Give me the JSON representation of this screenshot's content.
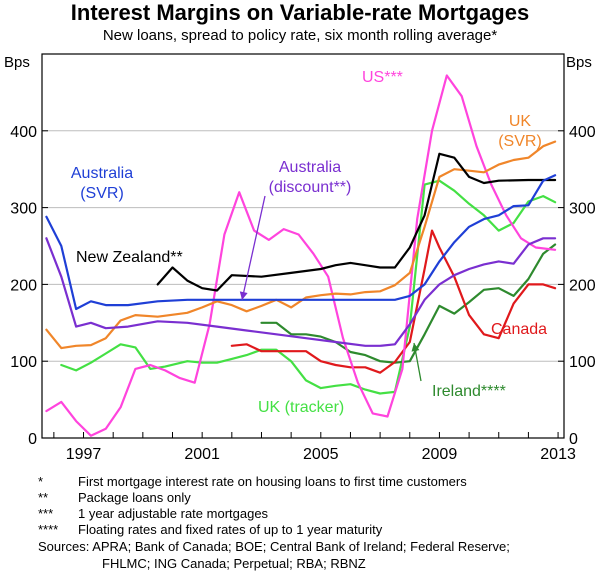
{
  "title": "Interest Margins on Variable-rate Mortgages",
  "subtitle": "New loans, spread to policy rate, six month rolling average*",
  "notes": [
    {
      "mark": "*",
      "text": "First mortgage interest rate on housing loans to first time customers"
    },
    {
      "mark": "**",
      "text": "Package loans only"
    },
    {
      "mark": "***",
      "text": "1 year adjustable rate mortgages"
    },
    {
      "mark": "****",
      "text": "Floating rates and fixed rates of up to 1 year maturity"
    }
  ],
  "sources": {
    "line1": "Sources: APRA; Bank of Canada; BOE; Central Bank of Ireland; Federal Reserve;",
    "line2": "FHLMC; ING Canada; Perpetual; RBA; RBNZ"
  },
  "colors": {
    "australia_svr": "#1f3fd6",
    "australia_discount": "#7a2fd0",
    "new_zealand": "#000000",
    "us": "#ff44dd",
    "uk_svr": "#f0862a",
    "canada": "#e0191c",
    "uk_tracker": "#44e044",
    "ireland": "#2e8a2e"
  },
  "chart_data": {
    "type": "line",
    "ylabel_left": "Bps",
    "ylabel_right": "Bps",
    "ylim": [
      0,
      500
    ],
    "xlim": [
      1995.6,
      2013.2
    ],
    "yticks": [
      0,
      100,
      200,
      300,
      400
    ],
    "xticks": [
      1997,
      2001,
      2005,
      2009,
      2013
    ],
    "series": [
      {
        "name": "Australia (SVR)",
        "label_lines": [
          "Australia",
          "(SVR)"
        ],
        "color_key": "australia_svr",
        "x": [
          1995.75,
          1996.25,
          1996.75,
          1997.25,
          1997.75,
          1998.5,
          1999.5,
          2000.5,
          2001.0,
          2007.0,
          2007.5,
          2008.0,
          2008.5,
          2009.0,
          2009.5,
          2010.0,
          2010.5,
          2011.0,
          2011.5,
          2012.0,
          2012.5,
          2012.9
        ],
        "y": [
          288,
          250,
          168,
          178,
          173,
          173,
          178,
          180,
          180,
          180,
          180,
          185,
          200,
          230,
          255,
          275,
          285,
          290,
          302,
          303,
          335,
          342
        ]
      },
      {
        "name": "Australia (discount**)",
        "label_lines": [
          "Australia",
          "(discount**)"
        ],
        "color_key": "australia_discount",
        "x": [
          1995.75,
          1996.25,
          1996.75,
          1997.25,
          1997.75,
          1998.5,
          1999.5,
          2000.5,
          2001.5,
          2002.5,
          2003.5,
          2004.5,
          2005.5,
          2006.5,
          2007.0,
          2007.5,
          2008.0,
          2008.5,
          2009.0,
          2009.5,
          2010.0,
          2010.5,
          2011.0,
          2011.5,
          2012.0,
          2012.5,
          2012.9
        ],
        "y": [
          260,
          210,
          145,
          150,
          143,
          145,
          152,
          150,
          145,
          140,
          135,
          130,
          125,
          120,
          120,
          122,
          148,
          180,
          200,
          212,
          220,
          226,
          230,
          227,
          252,
          260,
          260
        ]
      },
      {
        "name": "New Zealand**",
        "label_lines": [
          "New Zealand**"
        ],
        "color_key": "new_zealand",
        "x": [
          1999.5,
          2000.0,
          2000.5,
          2001.0,
          2001.5,
          2002.0,
          2003.0,
          2004.0,
          2005.0,
          2005.5,
          2006.0,
          2006.5,
          2007.0,
          2007.5,
          2008.0,
          2008.5,
          2009.0,
          2009.5,
          2010.0,
          2010.5,
          2011.0,
          2012.0,
          2012.9
        ],
        "y": [
          200,
          222,
          205,
          195,
          192,
          212,
          210,
          215,
          220,
          225,
          228,
          225,
          222,
          222,
          248,
          290,
          370,
          365,
          340,
          332,
          335,
          336,
          336
        ]
      },
      {
        "name": "US***",
        "label_lines": [
          "US***"
        ],
        "color_key": "us",
        "x": [
          1995.75,
          1996.25,
          1996.75,
          1997.25,
          1997.75,
          1998.25,
          1998.75,
          1999.25,
          1999.75,
          2000.25,
          2000.75,
          2001.25,
          2001.75,
          2002.25,
          2002.75,
          2003.25,
          2003.75,
          2004.25,
          2004.75,
          2005.25,
          2005.75,
          2006.25,
          2006.75,
          2007.25,
          2007.75,
          2008.25,
          2008.75,
          2009.25,
          2009.75,
          2010.25,
          2010.75,
          2011.25,
          2011.75,
          2012.25,
          2012.9
        ],
        "y": [
          35,
          47,
          22,
          3,
          12,
          40,
          90,
          95,
          88,
          78,
          72,
          148,
          265,
          320,
          270,
          258,
          272,
          265,
          240,
          210,
          130,
          72,
          32,
          28,
          90,
          285,
          400,
          472,
          445,
          380,
          330,
          290,
          260,
          248,
          245
        ]
      },
      {
        "name": "UK (SVR)",
        "label_lines": [
          "UK",
          "(SVR)"
        ],
        "color_key": "uk_svr",
        "x": [
          1995.75,
          1996.25,
          1996.75,
          1997.25,
          1997.75,
          1998.25,
          1998.75,
          1999.5,
          2000.5,
          2001.0,
          2001.5,
          2002.0,
          2002.5,
          2003.0,
          2003.5,
          2004.0,
          2004.5,
          2005.0,
          2005.5,
          2006.0,
          2006.5,
          2007.0,
          2007.5,
          2008.0,
          2008.5,
          2009.0,
          2009.5,
          2010.0,
          2010.5,
          2011.0,
          2011.5,
          2012.0,
          2012.5,
          2012.9
        ],
        "y": [
          141,
          117,
          120,
          121,
          130,
          153,
          160,
          158,
          163,
          170,
          178,
          173,
          165,
          172,
          180,
          170,
          183,
          186,
          188,
          187,
          190,
          191,
          199,
          215,
          275,
          340,
          350,
          348,
          346,
          356,
          362,
          365,
          380,
          386
        ]
      },
      {
        "name": "Canada",
        "label_lines": [
          "Canada"
        ],
        "color_key": "canada",
        "x": [
          2002.0,
          2002.5,
          2003.0,
          2003.5,
          2004.0,
          2004.5,
          2005.0,
          2005.5,
          2006.0,
          2006.5,
          2007.0,
          2007.5,
          2008.0,
          2008.5,
          2008.75,
          2009.0,
          2009.5,
          2010.0,
          2010.5,
          2011.0,
          2011.5,
          2012.0,
          2012.5,
          2012.9
        ],
        "y": [
          120,
          122,
          113,
          113,
          113,
          113,
          100,
          95,
          92,
          92,
          85,
          99,
          125,
          220,
          270,
          248,
          210,
          160,
          135,
          130,
          175,
          200,
          200,
          195
        ]
      },
      {
        "name": "UK (tracker)",
        "label_lines": [
          "UK (tracker)"
        ],
        "color_key": "uk_tracker",
        "x": [
          1996.25,
          1996.75,
          1997.25,
          1997.75,
          1998.25,
          1998.75,
          1999.25,
          1999.75,
          2000.5,
          2001.0,
          2001.5,
          2002.0,
          2002.5,
          2003.0,
          2003.5,
          2004.0,
          2004.5,
          2005.0,
          2005.5,
          2006.0,
          2006.5,
          2007.0,
          2007.5,
          2008.0,
          2008.5,
          2009.0,
          2009.5,
          2010.0,
          2010.5,
          2011.0,
          2011.5,
          2012.0,
          2012.5,
          2012.9
        ],
        "y": [
          95,
          88,
          98,
          110,
          122,
          118,
          90,
          93,
          100,
          98,
          98,
          103,
          108,
          115,
          115,
          100,
          75,
          65,
          68,
          70,
          63,
          58,
          60,
          145,
          330,
          335,
          322,
          305,
          290,
          270,
          280,
          308,
          315,
          307
        ]
      },
      {
        "name": "Ireland****",
        "label_lines": [
          "Ireland****"
        ],
        "color_key": "ireland",
        "x": [
          2003.0,
          2003.5,
          2004.0,
          2004.5,
          2005.0,
          2005.5,
          2006.0,
          2006.5,
          2007.0,
          2007.5,
          2008.0,
          2008.5,
          2009.0,
          2009.5,
          2010.0,
          2010.5,
          2011.0,
          2011.5,
          2012.0,
          2012.5,
          2012.9
        ],
        "y": [
          150,
          150,
          135,
          135,
          132,
          125,
          112,
          108,
          100,
          98,
          100,
          135,
          172,
          162,
          177,
          193,
          195,
          185,
          207,
          240,
          252
        ]
      }
    ]
  }
}
